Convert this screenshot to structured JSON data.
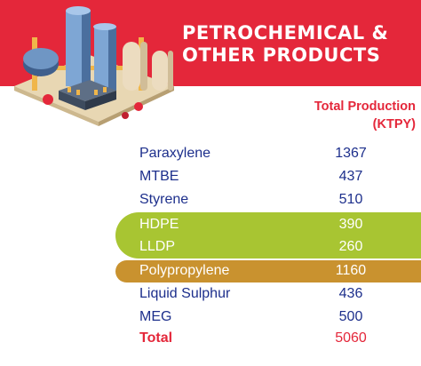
{
  "header": {
    "title_line1": "PETROCHEMICAL &",
    "title_line2": "OTHER PRODUCTS",
    "banner_color": "#e4273a"
  },
  "column": {
    "label_line1": "Total Production",
    "label_line2": "(KTPY)"
  },
  "products": [
    {
      "name": "Paraxylene",
      "value": "1367"
    },
    {
      "name": "MTBE",
      "value": "437"
    },
    {
      "name": "Styrene",
      "value": "510"
    },
    {
      "name": "HDPE",
      "value": "390"
    },
    {
      "name": "LLDP",
      "value": "260"
    },
    {
      "name": "Polypropylene",
      "value": "1160"
    },
    {
      "name": "Liquid Sulphur",
      "value": "436"
    },
    {
      "name": "MEG",
      "value": "500"
    }
  ],
  "total": {
    "name": "Total",
    "value": "5060"
  },
  "colors": {
    "text": "#1d2f8c",
    "highlight_green": "#a8c532",
    "highlight_gold": "#c9922f"
  },
  "illustration": "petrochemical-plant-icon"
}
